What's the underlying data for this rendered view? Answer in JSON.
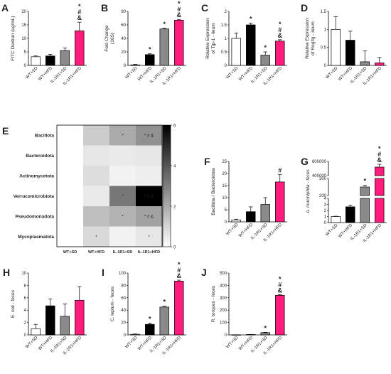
{
  "colors": {
    "WT+SD": "#ffffff",
    "WT+HFD": "#000000",
    "IL-1R1+SD": "#8a8a8a",
    "IL-1R1+HFD": "#ff1c7c"
  },
  "chart_data": [
    {
      "panel": "A",
      "type": "bar",
      "ylabel": "FITC Dextran (ug/mL)",
      "categories": [
        "WT+SD",
        "WT+HFD",
        "IL-1R1+SD",
        "IL-1R1+HFD"
      ],
      "values": [
        3.2,
        3.5,
        5.5,
        12.8
      ],
      "errors": [
        0.3,
        0.6,
        1.0,
        3.2
      ],
      "ylim": [
        0,
        20
      ],
      "ticks": [
        0,
        5,
        10,
        15,
        20
      ],
      "sig": [
        [],
        [],
        [],
        [
          "*",
          "#",
          "&"
        ]
      ]
    },
    {
      "panel": "B",
      "type": "bar",
      "ylabel": "Fold Change\n(16S)",
      "categories": [
        "WT+SD",
        "WT+HFD",
        "IL-1R1+SD",
        "IL-1R1+HFD"
      ],
      "values": [
        0.8,
        16,
        54,
        67
      ],
      "errors": [
        0.8,
        1.2,
        1.0,
        1.2
      ],
      "ylim": [
        0,
        80
      ],
      "ticks": [
        0,
        20,
        40,
        60,
        80
      ],
      "sig": [
        [],
        [
          "*"
        ],
        [
          "*"
        ],
        [
          "*",
          "#",
          "&"
        ]
      ]
    },
    {
      "panel": "C",
      "type": "bar",
      "ylabel": "Relative Expression\nof Tjp-1 - ileum",
      "categories": [
        "WT+SD",
        "WT+HFD",
        "IL-1R1+SD",
        "IL-1R1+HFD"
      ],
      "values": [
        1.0,
        1.5,
        0.38,
        0.9
      ],
      "errors": [
        0.2,
        0.07,
        0.12,
        0.05
      ],
      "ylim": [
        0,
        2.0
      ],
      "ticks": [
        0,
        0.5,
        1.0,
        1.5,
        2.0
      ],
      "sig": [
        [],
        [
          "*"
        ],
        [
          "*"
        ],
        [
          "*",
          "#",
          "&"
        ]
      ]
    },
    {
      "panel": "D",
      "type": "bar",
      "ylabel": "Relative Expression\nof Reg3g - ileum",
      "categories": [
        "WT+SD",
        "WT+HFD",
        "IL-1R1+SD",
        "IL-1R1+HFD"
      ],
      "values": [
        1.0,
        0.7,
        0.1,
        0.07
      ],
      "errors": [
        0.35,
        0.25,
        0.3,
        0.15
      ],
      "ylim": [
        0,
        1.5
      ],
      "ticks": [
        0,
        0.5,
        1.0,
        1.5
      ],
      "sig": [
        [],
        [],
        [],
        []
      ]
    },
    {
      "panel": "E",
      "type": "heatmap",
      "rows": [
        "Bacillota",
        "Bacteroidota",
        "Actinomycetota",
        "Verrucomicrobiota",
        "Pseudomonadota",
        "Mycoplasmatota"
      ],
      "columns": [
        "WT+SD",
        "WT+HFD",
        "IL-1R1+SD",
        "IL-1R1+HFD"
      ],
      "values": [
        [
          0,
          1.2,
          2.0,
          2.6
        ],
        [
          0,
          0.6,
          0.5,
          0.6
        ],
        [
          0,
          0.8,
          0.3,
          0.4
        ],
        [
          0,
          0.5,
          3.2,
          6.0
        ],
        [
          0,
          1.5,
          1.8,
          2.2
        ],
        [
          0,
          0.9,
          0.3,
          0.6
        ]
      ],
      "annotations": [
        [
          "",
          "",
          "*",
          "* # &"
        ],
        [
          "",
          "",
          "",
          ""
        ],
        [
          "",
          "",
          "",
          ""
        ],
        [
          "",
          "",
          "*",
          "* # &"
        ],
        [
          "",
          "",
          "*",
          "* # &"
        ],
        [
          "",
          "*",
          "",
          "*"
        ]
      ],
      "colorbar": {
        "min": 0,
        "max": 6,
        "ticks": [
          0,
          2,
          4,
          6
        ]
      }
    },
    {
      "panel": "F",
      "type": "bar",
      "ylabel": "Bacillota / Bacteroidota",
      "categories": [
        "WT+SD",
        "WT+HFD",
        "IL-1R1+SD",
        "IL-1R1+HFD"
      ],
      "values": [
        0.8,
        4.2,
        7.2,
        16.5
      ],
      "errors": [
        0.3,
        2.0,
        2.8,
        3.0
      ],
      "ylim": [
        0,
        25
      ],
      "ticks": [
        0,
        5,
        10,
        15,
        20,
        25
      ],
      "sig": [
        [],
        [],
        [],
        [
          "#"
        ]
      ]
    },
    {
      "panel": "G",
      "type": "bar",
      "ylabel": "A. muciniphila - feces",
      "categories": [
        "WT+SD",
        "WT+HFD",
        "IL-1R1+SD",
        "IL-1R1+HFD"
      ],
      "values": [
        1.0,
        2.6,
        250,
        520000
      ],
      "errors": [
        0.05,
        0.3,
        10,
        40000
      ],
      "broken_axis": true,
      "lower": {
        "ylim": [
          0,
          4
        ],
        "ticks": [
          0,
          1,
          2,
          3,
          4
        ]
      },
      "middle": {
        "ylim": [
          200,
          300
        ],
        "ticks": [
          200,
          300
        ]
      },
      "upper": {
        "ylim": [
          400000,
          600000
        ],
        "ticks": [
          400000,
          600000
        ]
      },
      "sig": [
        [],
        [],
        [
          "*"
        ],
        [
          "*",
          "#",
          "&"
        ]
      ]
    },
    {
      "panel": "H",
      "type": "bar",
      "ylabel": "E. coli - feces",
      "categories": [
        "WT+SD",
        "WT+HFD",
        "IL-1R1+SD",
        "IL-1R1+HFD"
      ],
      "values": [
        1.0,
        4.7,
        3.0,
        5.6
      ],
      "errors": [
        0.7,
        1.1,
        2.0,
        2.2
      ],
      "ylim": [
        0,
        10
      ],
      "ticks": [
        0,
        2,
        4,
        6,
        8,
        10
      ],
      "sig": [
        [],
        [],
        [],
        []
      ]
    },
    {
      "panel": "I",
      "type": "bar",
      "ylabel": "C. leptum - feces",
      "categories": [
        "WT+SD",
        "WT+HFD",
        "IL-1R1+SD",
        "IL-1R1+HFD"
      ],
      "values": [
        1.0,
        17,
        45,
        87
      ],
      "errors": [
        0.5,
        2.0,
        1.5,
        1.5
      ],
      "ylim": [
        0,
        100
      ],
      "ticks": [
        0,
        20,
        40,
        60,
        80,
        100
      ],
      "sig": [
        [],
        [
          "*"
        ],
        [
          "*"
        ],
        [
          "*",
          "#",
          "&"
        ]
      ]
    },
    {
      "panel": "J",
      "type": "bar",
      "ylabel": "R. torques - feces",
      "categories": [
        "WT+SD",
        "WT+HFD",
        "IL-1R1+SD",
        "IL-1R1+HFD"
      ],
      "values": [
        1.0,
        3.0,
        18,
        320
      ],
      "errors": [
        0.3,
        0.5,
        3,
        6
      ],
      "ylim": [
        0,
        500
      ],
      "ticks": [
        0,
        100,
        200,
        300,
        400,
        500
      ],
      "sig": [
        [],
        [],
        [
          "*"
        ],
        [
          "*",
          "#",
          "&"
        ]
      ]
    }
  ]
}
